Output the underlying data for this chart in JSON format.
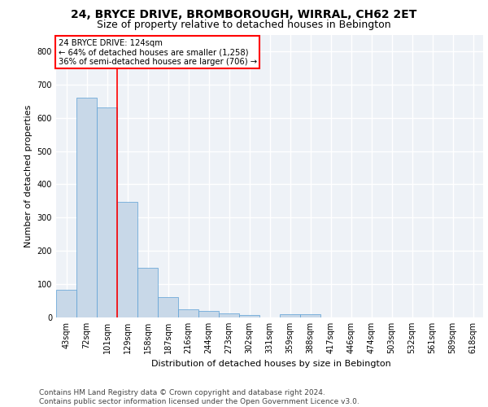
{
  "title_line1": "24, BRYCE DRIVE, BROMBOROUGH, WIRRAL, CH62 2ET",
  "title_line2": "Size of property relative to detached houses in Bebington",
  "xlabel": "Distribution of detached houses by size in Bebington",
  "ylabel": "Number of detached properties",
  "bar_color": "#c8d8e8",
  "bar_edge_color": "#5a9fd4",
  "categories": [
    "43sqm",
    "72sqm",
    "101sqm",
    "129sqm",
    "158sqm",
    "187sqm",
    "216sqm",
    "244sqm",
    "273sqm",
    "302sqm",
    "331sqm",
    "359sqm",
    "388sqm",
    "417sqm",
    "446sqm",
    "474sqm",
    "503sqm",
    "532sqm",
    "561sqm",
    "589sqm",
    "618sqm"
  ],
  "values": [
    83,
    660,
    630,
    347,
    148,
    60,
    25,
    20,
    12,
    7,
    0,
    10,
    10,
    0,
    0,
    0,
    0,
    0,
    0,
    0,
    0
  ],
  "ylim": [
    0,
    850
  ],
  "yticks": [
    0,
    100,
    200,
    300,
    400,
    500,
    600,
    700,
    800
  ],
  "red_line_x": 2.5,
  "annotation_text": "24 BRYCE DRIVE: 124sqm\n← 64% of detached houses are smaller (1,258)\n36% of semi-detached houses are larger (706) →",
  "annotation_box_color": "white",
  "annotation_box_edgecolor": "red",
  "red_line_color": "red",
  "background_color": "#eef2f7",
  "grid_color": "white",
  "footer_text": "Contains HM Land Registry data © Crown copyright and database right 2024.\nContains public sector information licensed under the Open Government Licence v3.0.",
  "title_fontsize": 10,
  "subtitle_fontsize": 9,
  "label_fontsize": 8,
  "tick_fontsize": 7,
  "footer_fontsize": 6.5
}
